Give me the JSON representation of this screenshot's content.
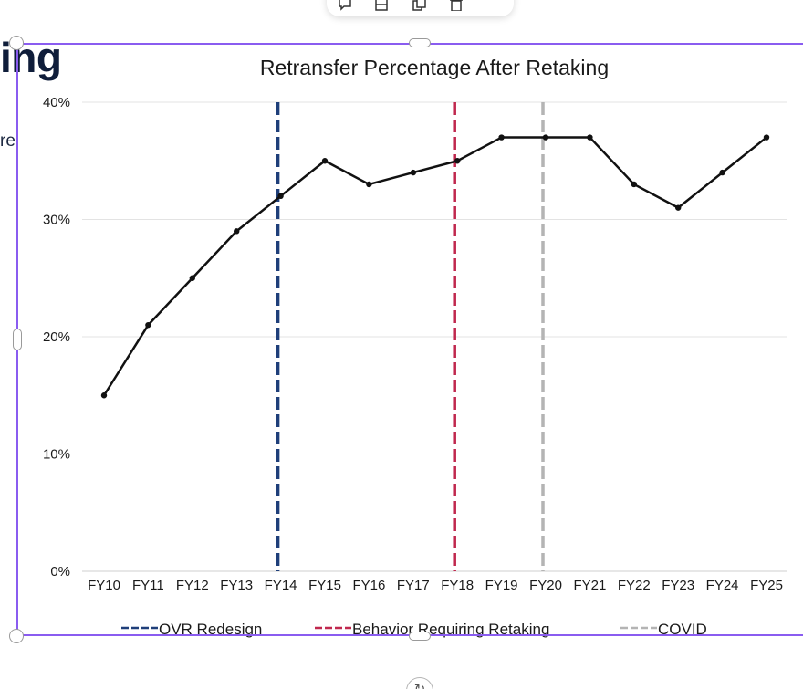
{
  "slide": {
    "heading_fragment": "ing",
    "text_fragment": "re"
  },
  "toolbar": {
    "icons": [
      "comment-icon",
      "layout-icon",
      "duplicate-icon",
      "delete-icon"
    ]
  },
  "selection": {
    "color": "#8a5cf0"
  },
  "chart_data": {
    "type": "line",
    "title": "Retransfer Percentage After Retaking",
    "xlabel": "",
    "ylabel": "",
    "categories": [
      "FY10",
      "FY11",
      "FY12",
      "FY13",
      "FY14",
      "FY15",
      "FY16",
      "FY17",
      "FY18",
      "FY19",
      "FY20",
      "FY21",
      "FY22",
      "FY23",
      "FY24",
      "FY25"
    ],
    "series": [
      {
        "name": "Retransfer Percentage",
        "color": "#111111",
        "values": [
          15,
          21,
          25,
          29,
          32,
          35,
          33,
          34,
          35,
          37,
          37,
          37,
          33,
          31,
          34,
          37
        ]
      }
    ],
    "ylim": [
      0,
      40
    ],
    "yticks": [
      0,
      10,
      20,
      30,
      40
    ],
    "ytick_labels": [
      "0%",
      "10%",
      "20%",
      "30%",
      "40%"
    ],
    "grid": true,
    "reference_lines": [
      {
        "label": "OVR Redesign",
        "at": "FY14",
        "color": "#1f3f7a"
      },
      {
        "label": "Behavior Requiring Retaking",
        "at": "FY18",
        "color": "#c0284e"
      },
      {
        "label": "COVID",
        "at": "FY20",
        "color": "#b4b4b4"
      }
    ],
    "legend_position": "bottom"
  }
}
